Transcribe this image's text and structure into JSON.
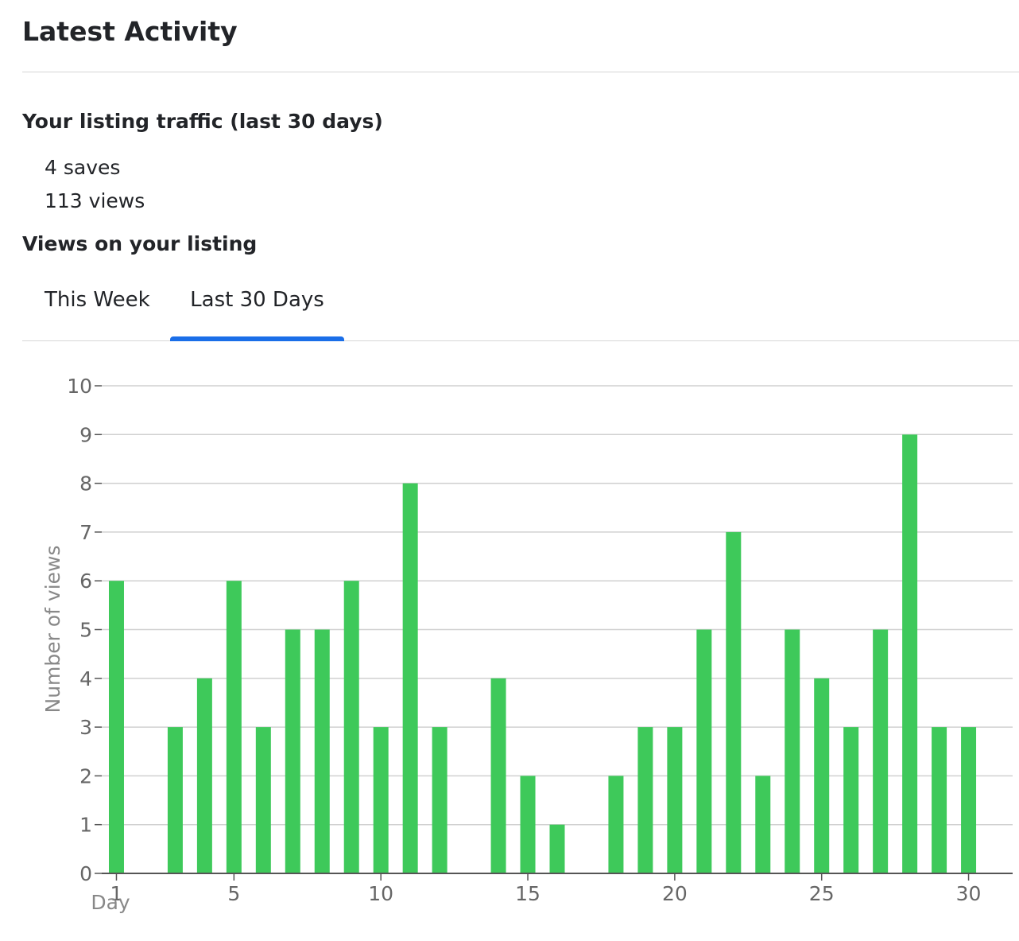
{
  "page": {
    "title": "Latest Activity",
    "traffic_heading": "Your listing traffic (last 30 days)",
    "saves": "4 saves",
    "views": "113 views",
    "views_heading": "Views on your listing"
  },
  "tabs": [
    {
      "label": "This Week",
      "active": false
    },
    {
      "label": "Last 30 Days",
      "active": true
    }
  ],
  "colors": {
    "bar": "#3ec95a",
    "tab_accent": "#1a6ee8",
    "grid": "#d0d0d0",
    "axis": "#555555"
  },
  "chart_data": {
    "type": "bar",
    "title": "",
    "xlabel": "Day",
    "ylabel": "Number of views",
    "ylim": [
      0,
      10
    ],
    "yticks": [
      0,
      1,
      2,
      3,
      4,
      5,
      6,
      7,
      8,
      9,
      10
    ],
    "xlim": [
      0.5,
      31.5
    ],
    "xticks": [
      1,
      5,
      10,
      15,
      20,
      25,
      30
    ],
    "grid": true,
    "x": [
      1,
      2,
      3,
      4,
      5,
      6,
      7,
      8,
      9,
      10,
      11,
      12,
      13,
      14,
      15,
      16,
      17,
      18,
      19,
      20,
      21,
      22,
      23,
      24,
      25,
      26,
      27,
      28,
      29,
      30
    ],
    "values": [
      6,
      0,
      3,
      4,
      6,
      3,
      5,
      5,
      6,
      3,
      8,
      3,
      0,
      4,
      2,
      1,
      0,
      2,
      3,
      3,
      5,
      7,
      2,
      5,
      4,
      3,
      5,
      9,
      3,
      3
    ]
  }
}
